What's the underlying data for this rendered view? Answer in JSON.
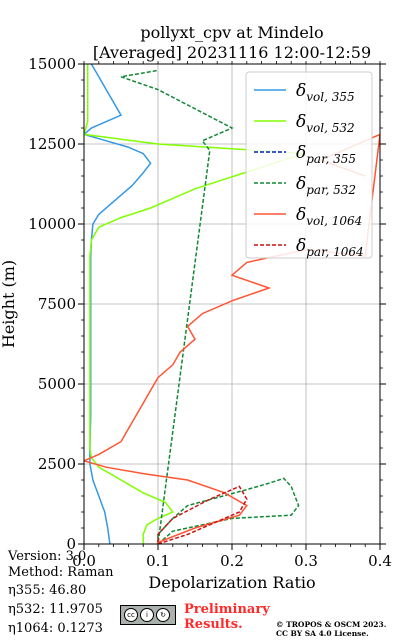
{
  "chart_data": {
    "type": "line",
    "title_line1": "pollyxt_cpv at Mindelo",
    "title_line2": "[Averaged] 20231116 12:00-12:59",
    "xlabel": "Depolarization Ratio",
    "ylabel": "Height (m)",
    "xlim": [
      0.0,
      0.4
    ],
    "ylim": [
      0,
      15000
    ],
    "xticks": [
      0.0,
      0.1,
      0.2,
      0.3,
      0.4
    ],
    "xtick_labels": [
      "0.0",
      "0.1",
      "0.2",
      "0.3",
      "0.4"
    ],
    "yticks": [
      0,
      2500,
      5000,
      7500,
      10000,
      12500,
      15000
    ],
    "ytick_labels": [
      "0",
      "2500",
      "5000",
      "7500",
      "10000",
      "12500",
      "15000"
    ],
    "grid": true,
    "legend_position": "top-right",
    "legend": [
      {
        "base": "δ",
        "sub": "vol, 355",
        "color": "#3399e6",
        "dash": "solid"
      },
      {
        "base": "δ",
        "sub": "vol, 532",
        "color": "#80ff00",
        "dash": "solid"
      },
      {
        "base": "δ",
        "sub": "par, 355",
        "color": "#0022aa",
        "dash": "dashed"
      },
      {
        "base": "δ",
        "sub": "par, 532",
        "color": "#118833",
        "dash": "dashed"
      },
      {
        "base": "δ",
        "sub": "vol, 1064",
        "color": "#ff5533",
        "dash": "solid"
      },
      {
        "base": "δ",
        "sub": "par, 1064",
        "color": "#cc1111",
        "dash": "dashed"
      }
    ],
    "series": [
      {
        "color": "#3399e6",
        "dash": "solid",
        "points": [
          [
            0.035,
            0
          ],
          [
            0.032,
            500
          ],
          [
            0.028,
            1000
          ],
          [
            0.02,
            1500
          ],
          [
            0.012,
            2000
          ],
          [
            0.008,
            2500
          ],
          [
            0.008,
            3000
          ],
          [
            0.009,
            4000
          ],
          [
            0.009,
            5000
          ],
          [
            0.009,
            6000
          ],
          [
            0.009,
            7000
          ],
          [
            0.009,
            8000
          ],
          [
            0.009,
            9000
          ],
          [
            0.01,
            9500
          ],
          [
            0.012,
            10000
          ],
          [
            0.02,
            10300
          ],
          [
            0.035,
            10600
          ],
          [
            0.05,
            10900
          ],
          [
            0.065,
            11200
          ],
          [
            0.08,
            11600
          ],
          [
            0.09,
            11900
          ],
          [
            0.08,
            12200
          ],
          [
            0.06,
            12400
          ],
          [
            0.03,
            12600
          ],
          [
            0.0,
            12800
          ],
          [
            0.01,
            13000
          ],
          [
            0.05,
            13400
          ],
          [
            0.04,
            13800
          ],
          [
            0.03,
            14200
          ],
          [
            0.02,
            14600
          ],
          [
            0.01,
            15000
          ]
        ]
      },
      {
        "color": "#80ff00",
        "dash": "solid",
        "points": [
          [
            0.08,
            0
          ],
          [
            0.08,
            300
          ],
          [
            0.085,
            600
          ],
          [
            0.1,
            800
          ],
          [
            0.12,
            1000
          ],
          [
            0.11,
            1300
          ],
          [
            0.08,
            1600
          ],
          [
            0.05,
            2000
          ],
          [
            0.02,
            2400
          ],
          [
            0.01,
            2700
          ],
          [
            0.008,
            3000
          ],
          [
            0.008,
            4000
          ],
          [
            0.008,
            5000
          ],
          [
            0.008,
            6000
          ],
          [
            0.008,
            7000
          ],
          [
            0.008,
            8000
          ],
          [
            0.008,
            9000
          ],
          [
            0.01,
            9500
          ],
          [
            0.02,
            9900
          ],
          [
            0.05,
            10200
          ],
          [
            0.09,
            10500
          ],
          [
            0.12,
            10800
          ],
          [
            0.15,
            11100
          ],
          [
            0.19,
            11400
          ],
          [
            0.23,
            11700
          ],
          [
            0.27,
            12000
          ],
          [
            0.3,
            12200
          ],
          [
            0.1,
            12500
          ],
          [
            0.0,
            12800
          ],
          [
            0.005,
            13200
          ],
          [
            0.005,
            13800
          ],
          [
            0.005,
            14400
          ],
          [
            0.005,
            15000
          ]
        ]
      },
      {
        "color": "#0022aa",
        "dash": "dashed",
        "points": [
          [
            0.1,
            0
          ],
          [
            0.1,
            100
          ],
          [
            0.1,
            200
          ]
        ]
      },
      {
        "color": "#118833",
        "dash": "dashed",
        "points": [
          [
            0.1,
            0
          ],
          [
            0.12,
            400
          ],
          [
            0.2,
            800
          ],
          [
            0.28,
            900
          ],
          [
            0.29,
            1200
          ],
          [
            0.28,
            1800
          ],
          [
            0.27,
            2050
          ],
          [
            0.25,
            1900
          ],
          [
            0.22,
            1700
          ],
          [
            0.14,
            1200
          ],
          [
            0.12,
            800
          ],
          [
            0.1,
            300
          ],
          [
            0.1,
            0
          ],
          [
            0.17,
            12300
          ],
          [
            0.16,
            12600
          ],
          [
            0.2,
            13000
          ],
          [
            0.1,
            14200
          ],
          [
            0.05,
            14600
          ],
          [
            0.1,
            14800
          ]
        ]
      },
      {
        "color": "#ff5533",
        "dash": "solid",
        "points": [
          [
            0.1,
            0
          ],
          [
            0.1,
            50
          ],
          [
            0.15,
            500
          ],
          [
            0.21,
            900
          ],
          [
            0.22,
            1200
          ],
          [
            0.19,
            1600
          ],
          [
            0.14,
            2000
          ],
          [
            0.08,
            2200
          ],
          [
            0.03,
            2400
          ],
          [
            0.0,
            2600
          ],
          [
            0.02,
            2800
          ],
          [
            0.05,
            3200
          ],
          [
            0.06,
            3600
          ],
          [
            0.07,
            4000
          ],
          [
            0.08,
            4400
          ],
          [
            0.09,
            4800
          ],
          [
            0.1,
            5200
          ],
          [
            0.12,
            5600
          ],
          [
            0.13,
            6000
          ],
          [
            0.15,
            6400
          ],
          [
            0.14,
            6800
          ],
          [
            0.16,
            7200
          ],
          [
            0.2,
            7600
          ],
          [
            0.25,
            8000
          ],
          [
            0.2,
            8400
          ],
          [
            0.22,
            8800
          ],
          [
            0.3,
            9200
          ],
          [
            0.38,
            9000
          ],
          [
            0.4,
            12800
          ],
          [
            0.32,
            12000
          ],
          [
            0.38,
            11500
          ]
        ]
      },
      {
        "color": "#cc1111",
        "dash": "dashed",
        "points": [
          [
            0.1,
            0
          ],
          [
            0.14,
            300
          ],
          [
            0.18,
            700
          ],
          [
            0.21,
            1000
          ],
          [
            0.22,
            1400
          ],
          [
            0.21,
            1800
          ],
          [
            0.19,
            1600
          ],
          [
            0.17,
            1400
          ],
          [
            0.12,
            800
          ],
          [
            0.1,
            300
          ],
          [
            0.1,
            0
          ]
        ]
      }
    ]
  },
  "info": {
    "version": "Version: 3.0",
    "method": "Method: Raman",
    "eta355": "η355:  46.80",
    "eta532": "η532: 11.9705",
    "eta1064": "η1064: 0.1273"
  },
  "footer": {
    "cc_text": "BY SA",
    "prelim_line1": "Preliminary",
    "prelim_line2": "Results.",
    "copyright_line1": "© TROPOS & OSCM 2023.",
    "copyright_line2": "CC BY SA 4.0 License."
  }
}
